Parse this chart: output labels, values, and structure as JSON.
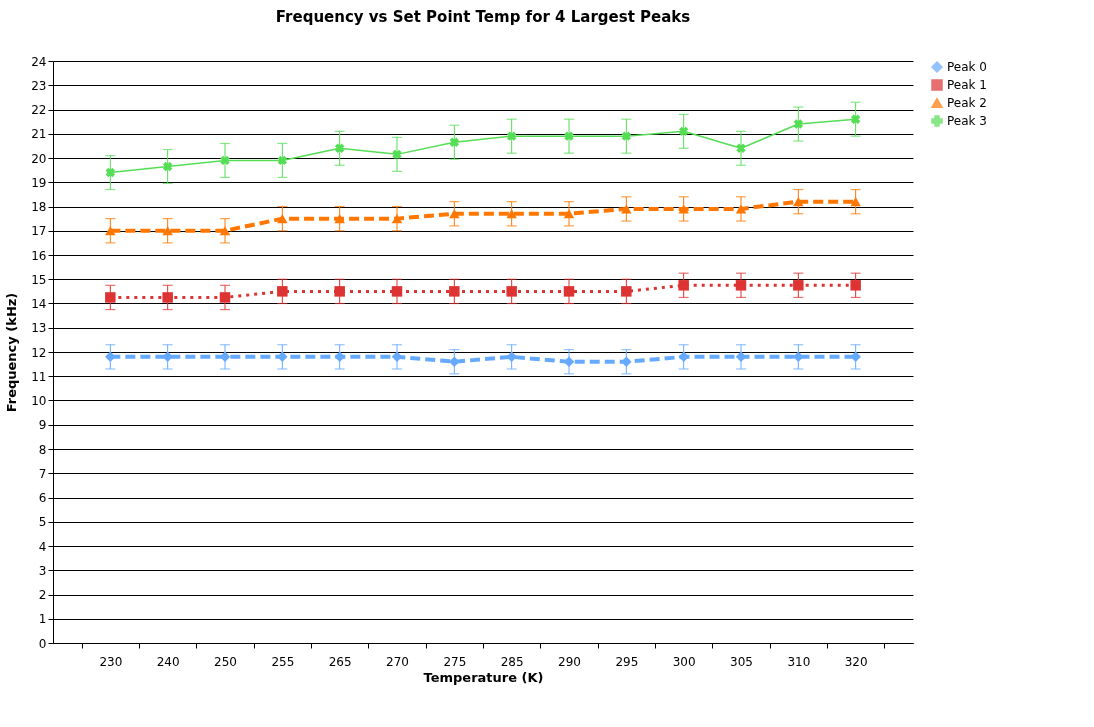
{
  "chart_data": {
    "type": "line",
    "title": "Frequency vs Set Point Temp for 4 Largest Peaks",
    "xlabel": "Temperature (K)",
    "ylabel": "Frequency (kHz)",
    "categories": [
      "230",
      "240",
      "250",
      "255",
      "265",
      "270",
      "275",
      "285",
      "290",
      "295",
      "300",
      "305",
      "310",
      "320"
    ],
    "ylim": [
      0,
      24
    ],
    "yticks": [
      0,
      1,
      2,
      3,
      4,
      5,
      6,
      7,
      8,
      9,
      10,
      11,
      12,
      13,
      14,
      15,
      16,
      17,
      18,
      19,
      20,
      21,
      22,
      23,
      24
    ],
    "grid": "y",
    "legend": "right",
    "series": [
      {
        "name": "Peak 0",
        "color": "#66aaff",
        "marker": "diamond",
        "line_style": "dashed",
        "values": [
          11.8,
          11.8,
          11.8,
          11.8,
          11.8,
          11.8,
          11.6,
          11.8,
          11.6,
          11.6,
          11.8,
          11.8,
          11.8,
          11.8
        ],
        "errors": [
          0.5,
          0.5,
          0.5,
          0.5,
          0.5,
          0.5,
          0.5,
          0.5,
          0.5,
          0.5,
          0.5,
          0.5,
          0.5,
          0.5
        ]
      },
      {
        "name": "Peak 1",
        "color": "#dd3333",
        "marker": "square",
        "line_style": "dotted",
        "values": [
          14.25,
          14.25,
          14.25,
          14.5,
          14.5,
          14.5,
          14.5,
          14.5,
          14.5,
          14.5,
          14.75,
          14.75,
          14.75,
          14.75
        ],
        "errors": [
          0.5,
          0.5,
          0.5,
          0.5,
          0.5,
          0.5,
          0.5,
          0.5,
          0.5,
          0.5,
          0.5,
          0.5,
          0.5,
          0.5
        ]
      },
      {
        "name": "Peak 2",
        "color": "#ff7700",
        "marker": "triangle",
        "line_style": "dashed",
        "values": [
          17,
          17,
          17,
          17.5,
          17.5,
          17.5,
          17.7,
          17.7,
          17.7,
          17.9,
          17.9,
          17.9,
          18.2,
          18.2
        ],
        "errors": [
          0.5,
          0.5,
          0.5,
          0.5,
          0.5,
          0.5,
          0.5,
          0.5,
          0.5,
          0.5,
          0.5,
          0.5,
          0.5,
          0.5
        ]
      },
      {
        "name": "Peak 3",
        "color": "#55dd55",
        "marker": "cross",
        "line_style": "solid",
        "values": [
          19.4,
          19.65,
          19.9,
          19.9,
          20.4,
          20.15,
          20.65,
          20.9,
          20.9,
          20.9,
          21.1,
          20.4,
          21.4,
          21.6
        ],
        "errors": [
          0.7,
          0.7,
          0.7,
          0.7,
          0.7,
          0.7,
          0.7,
          0.7,
          0.7,
          0.7,
          0.7,
          0.7,
          0.7,
          0.7
        ]
      }
    ]
  }
}
